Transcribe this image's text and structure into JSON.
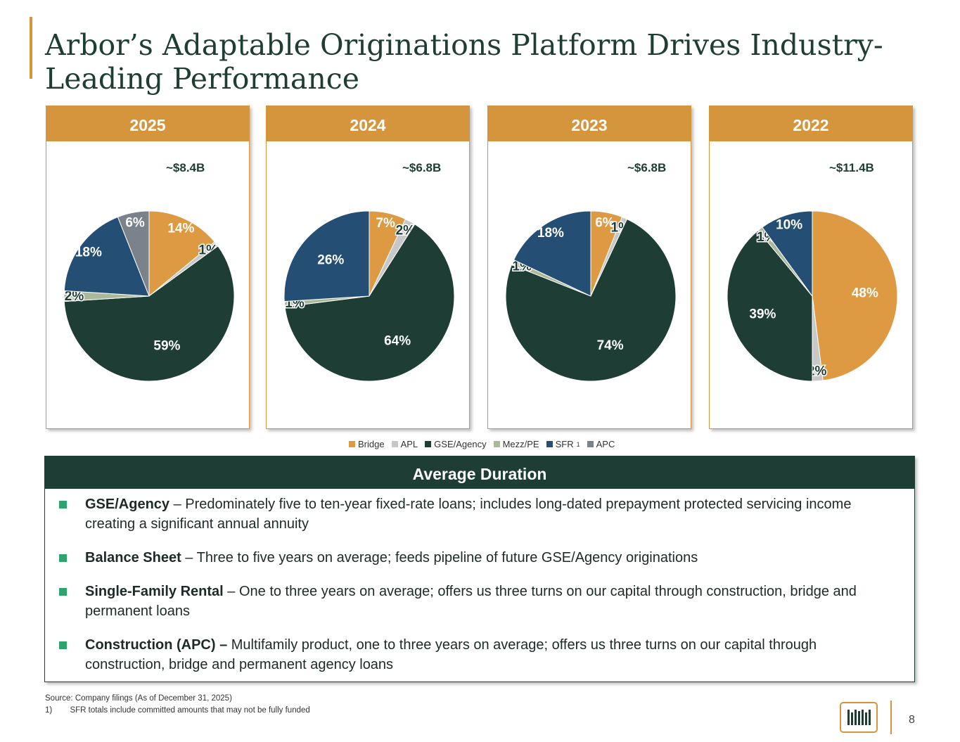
{
  "title": "Arbor’s Adaptable Originations Platform Drives Industry-Leading Performance",
  "colors": {
    "Bridge": "#dd9a42",
    "APL": "#c8c8c8",
    "GSE/Agency": "#1e3d34",
    "Mezz/PE": "#a9b99a",
    "SFR": "#244e74",
    "APC": "#7a838c",
    "accent": "#d4953c"
  },
  "legend": [
    {
      "label": "Bridge",
      "key": "Bridge"
    },
    {
      "label": "APL",
      "key": "APL"
    },
    {
      "label": "GSE/Agency",
      "key": "GSE/Agency"
    },
    {
      "label": "Mezz/PE",
      "key": "Mezz/PE"
    },
    {
      "label": "SFR",
      "key": "SFR",
      "sup": "1"
    },
    {
      "label": "APC",
      "key": "APC"
    }
  ],
  "chart_data": [
    {
      "type": "pie",
      "title": "2025",
      "total": "~$8.4B",
      "slices": [
        {
          "category": "Bridge",
          "value": 14,
          "label": "14%"
        },
        {
          "category": "APL",
          "value": 1,
          "label": "1%"
        },
        {
          "category": "GSE/Agency",
          "value": 59,
          "label": "59%"
        },
        {
          "category": "Mezz/PE",
          "value": 2,
          "label": "2%"
        },
        {
          "category": "SFR",
          "value": 18,
          "label": "18%"
        },
        {
          "category": "APC",
          "value": 6,
          "label": "6%"
        }
      ]
    },
    {
      "type": "pie",
      "title": "2024",
      "total": "~$6.8B",
      "slices": [
        {
          "category": "Bridge",
          "value": 7,
          "label": "7%"
        },
        {
          "category": "APL",
          "value": 2,
          "label": "2%"
        },
        {
          "category": "GSE/Agency",
          "value": 64,
          "label": "64%"
        },
        {
          "category": "Mezz/PE",
          "value": 1,
          "label": "1%"
        },
        {
          "category": "SFR",
          "value": 26,
          "label": "26%"
        }
      ]
    },
    {
      "type": "pie",
      "title": "2023",
      "total": "~$6.8B",
      "slices": [
        {
          "category": "Bridge",
          "value": 6,
          "label": "6%"
        },
        {
          "category": "APL",
          "value": 1,
          "label": "1%"
        },
        {
          "category": "GSE/Agency",
          "value": 74,
          "label": "74%"
        },
        {
          "category": "Mezz/PE",
          "value": 1,
          "label": "1%"
        },
        {
          "category": "SFR",
          "value": 18,
          "label": "18%"
        }
      ]
    },
    {
      "type": "pie",
      "title": "2022",
      "total": "~$11.4B",
      "slices": [
        {
          "category": "Bridge",
          "value": 48,
          "label": "48%"
        },
        {
          "category": "APL",
          "value": 2,
          "label": "2%"
        },
        {
          "category": "GSE/Agency",
          "value": 39,
          "label": "39%"
        },
        {
          "category": "Mezz/PE",
          "value": 1,
          "label": "1%"
        },
        {
          "category": "SFR",
          "value": 10,
          "label": "10%"
        }
      ]
    }
  ],
  "duration": {
    "heading": "Average Duration",
    "items": [
      {
        "bold": "GSE/Agency",
        "text": " – Predominately five to ten-year fixed-rate loans; includes long-dated prepayment protected servicing income creating a significant annual annuity"
      },
      {
        "bold": "Balance Sheet",
        "text": " – Three to five years on average; feeds pipeline of future GSE/Agency originations"
      },
      {
        "bold": "Single-Family Rental",
        "text": " – One to three years on average; offers us three turns on our capital through construction, bridge and permanent loans"
      },
      {
        "bold": "Construction (APC) –",
        "text": " Multifamily product, one to three years on average; offers us three turns on our capital through construction, bridge and permanent agency loans"
      }
    ]
  },
  "footnotes": {
    "source": "Source: Company filings (As of December 31, 2025)",
    "note_num": "1)",
    "note": "SFR totals include committed amounts that may not be fully funded"
  },
  "page_number": "8"
}
